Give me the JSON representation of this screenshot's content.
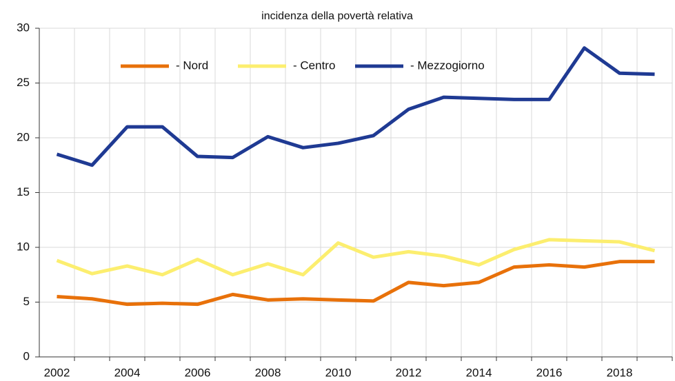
{
  "chart_data": {
    "type": "line",
    "title": "incidenza della povertà relativa",
    "categories": [
      "2002",
      null,
      "2004",
      null,
      "2006",
      null,
      "2008",
      null,
      "2010",
      null,
      "2012",
      null,
      "2014",
      null,
      "2016",
      null,
      "2018",
      null
    ],
    "series": [
      {
        "name": "- Nord",
        "color": "#e8710a",
        "values": [
          5.5,
          5.3,
          4.8,
          4.9,
          4.8,
          5.7,
          5.2,
          5.3,
          5.2,
          5.1,
          6.8,
          6.5,
          6.8,
          8.2,
          8.4,
          8.2,
          8.7,
          8.7
        ]
      },
      {
        "name": "- Centro",
        "color": "#fcee6f",
        "values": [
          8.8,
          7.6,
          8.3,
          7.5,
          8.9,
          7.5,
          8.5,
          7.5,
          10.4,
          9.1,
          9.6,
          9.2,
          8.4,
          9.8,
          10.7,
          10.6,
          10.5,
          9.7
        ]
      },
      {
        "name": "- Mezzogiorno",
        "color": "#1f3a93",
        "values": [
          18.5,
          17.5,
          21.0,
          21.0,
          18.3,
          18.2,
          20.1,
          19.1,
          19.5,
          20.2,
          22.6,
          23.7,
          23.6,
          23.5,
          23.5,
          28.2,
          25.9,
          25.8
        ]
      }
    ],
    "ylim": [
      0,
      30
    ],
    "yticks": [
      0,
      5,
      10,
      15,
      20,
      25,
      30
    ],
    "grid": true
  }
}
